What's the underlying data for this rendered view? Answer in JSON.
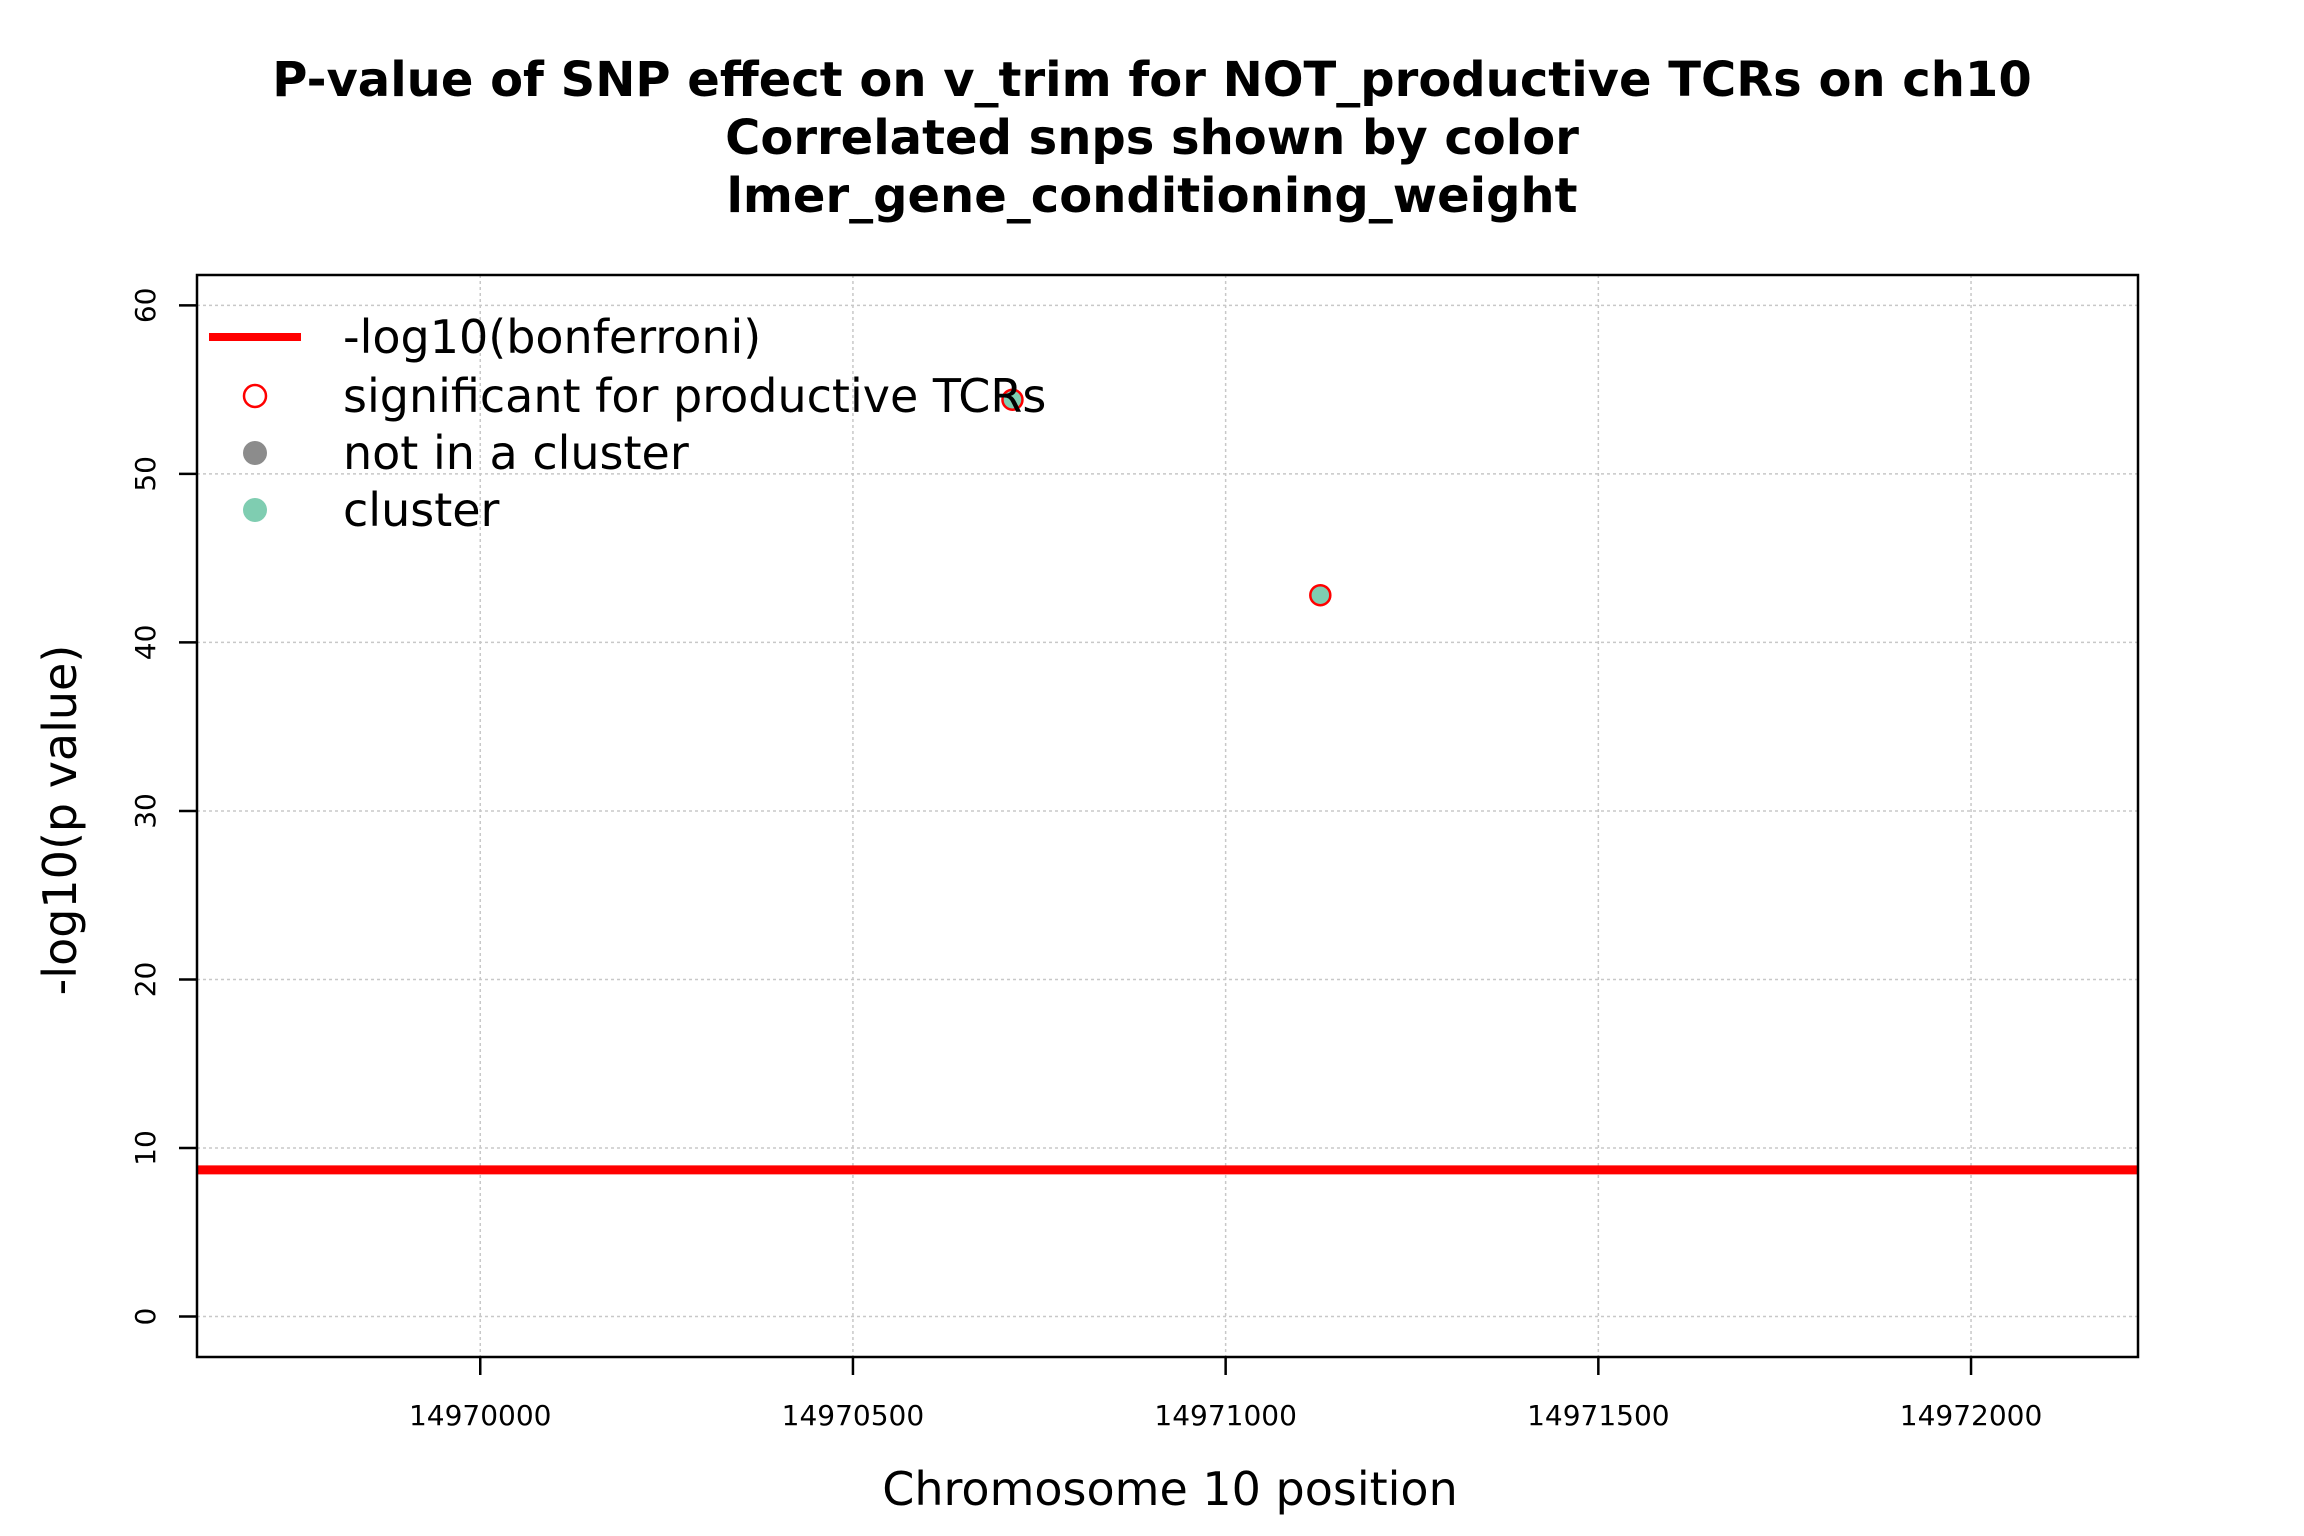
{
  "chart_data": {
    "type": "scatter",
    "title": [
      "P-value of SNP effect on v_trim for NOT_productive TCRs on ch10",
      "Correlated snps shown by color",
      "lmer_gene_conditioning_weight"
    ],
    "xlabel": "Chromosome 10 position",
    "ylabel": "-log10(p value)",
    "xlim": [
      14969620,
      14972224
    ],
    "ylim": [
      -2.4,
      61.8
    ],
    "x_ticks": [
      14970000,
      14970500,
      14971000,
      14971500,
      14972000
    ],
    "x_tick_labels": [
      "14970000",
      "14970500",
      "14971000",
      "14971500",
      "14972000"
    ],
    "y_ticks": [
      0,
      10,
      20,
      30,
      40,
      50,
      60
    ],
    "y_tick_labels": [
      "0",
      "10",
      "20",
      "30",
      "40",
      "50",
      "60"
    ],
    "grid": true,
    "bonferroni_line": {
      "y": 8.7,
      "color": "#ff0000"
    },
    "series": [
      {
        "name": "cluster",
        "color": "#7fcdb1",
        "significant_for_productive": true,
        "points": [
          {
            "x": 14970714,
            "y": 54.4
          },
          {
            "x": 14971127,
            "y": 42.8
          }
        ]
      }
    ],
    "legend": {
      "position": "top-left",
      "entries": [
        {
          "label": "-log10(bonferroni)",
          "kind": "line",
          "color": "#ff0000"
        },
        {
          "label": "significant for productive TCRs",
          "kind": "open-circle",
          "color": "#ff0000"
        },
        {
          "label": "not in a cluster",
          "kind": "filled-circle",
          "color": "#8c8c8c"
        },
        {
          "label": "cluster",
          "kind": "filled-circle",
          "color": "#7fcdb1"
        }
      ]
    }
  }
}
